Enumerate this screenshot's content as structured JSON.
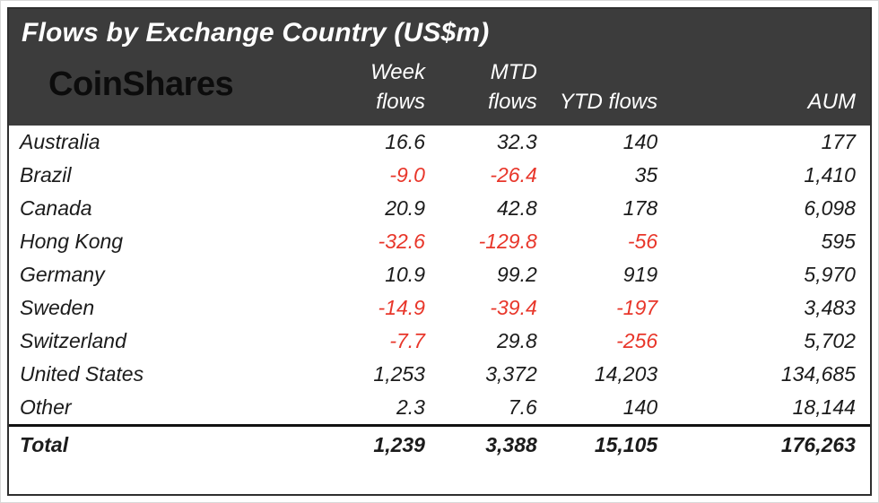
{
  "chart_data": {
    "type": "table",
    "title": "Flows by Exchange Country (US$m)",
    "logo_text": "CoinShares",
    "columns": [
      {
        "label": "Week flows",
        "line1": "Week",
        "line2": "flows"
      },
      {
        "label": "MTD flows",
        "line1": "MTD",
        "line2": "flows"
      },
      {
        "label": "YTD flows",
        "line1": "",
        "line2": "YTD flows"
      },
      {
        "label": "AUM",
        "line1": "",
        "line2": "AUM"
      }
    ],
    "rows": [
      {
        "country": "Australia",
        "week": "16.6",
        "mtd": "32.3",
        "ytd": "140",
        "aum": "177"
      },
      {
        "country": "Brazil",
        "week": "-9.0",
        "mtd": "-26.4",
        "ytd": "35",
        "aum": "1,410"
      },
      {
        "country": "Canada",
        "week": "20.9",
        "mtd": "42.8",
        "ytd": "178",
        "aum": "6,098"
      },
      {
        "country": "Hong Kong",
        "week": "-32.6",
        "mtd": "-129.8",
        "ytd": "-56",
        "aum": "595"
      },
      {
        "country": "Germany",
        "week": "10.9",
        "mtd": "99.2",
        "ytd": "919",
        "aum": "5,970"
      },
      {
        "country": "Sweden",
        "week": "-14.9",
        "mtd": "-39.4",
        "ytd": "-197",
        "aum": "3,483"
      },
      {
        "country": "Switzerland",
        "week": "-7.7",
        "mtd": "29.8",
        "ytd": "-256",
        "aum": "5,702"
      },
      {
        "country": "United States",
        "week": "1,253",
        "mtd": "3,372",
        "ytd": "14,203",
        "aum": "134,685"
      },
      {
        "country": "Other",
        "week": "2.3",
        "mtd": "7.6",
        "ytd": "140",
        "aum": "18,144"
      }
    ],
    "total": {
      "country": "Total",
      "week": "1,239",
      "mtd": "3,388",
      "ytd": "15,105",
      "aum": "176,263"
    }
  },
  "colors": {
    "negative": "#e8362a",
    "header_bg": "#3c3c3c",
    "total_rule": "#111111"
  }
}
